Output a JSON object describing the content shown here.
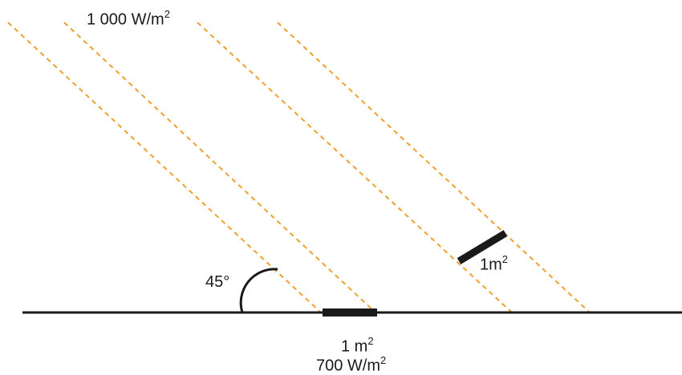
{
  "labels": {
    "incident_irradiance": {
      "value": "1 000 W/m",
      "exp": "2"
    },
    "angle": "45°",
    "tilted_panel": {
      "value": "1m",
      "exp": "2"
    },
    "ground_area": {
      "value": "1 m",
      "exp": "2"
    },
    "ground_irradiance": {
      "value": "700 W/m",
      "exp": "2"
    }
  },
  "colors": {
    "rays": "#f0a030",
    "ground": "#1a1a1a",
    "panels": "#1a1a1a"
  }
}
